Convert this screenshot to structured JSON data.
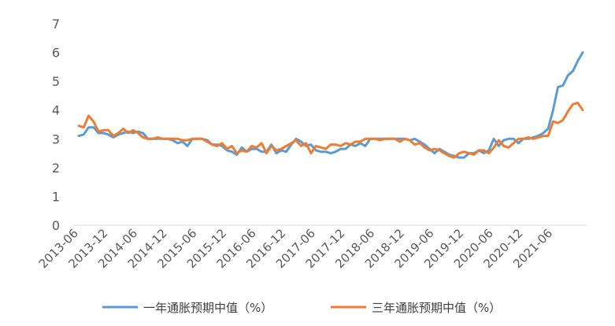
{
  "chart_data": {
    "type": "line",
    "title": "",
    "xlabel": "",
    "ylabel": "",
    "ylim": [
      0,
      7
    ],
    "yticks": [
      "0",
      "1",
      "2",
      "3",
      "4",
      "5",
      "6",
      "7"
    ],
    "xtick_labels": [
      "2013-06",
      "2013-12",
      "2014-06",
      "2014-12",
      "2015-06",
      "2015-12",
      "2016-06",
      "2016-12",
      "2017-06",
      "2017-12",
      "2018-06",
      "2018-12",
      "2019-06",
      "2019-12",
      "2020-06",
      "2020-12",
      "2021-06"
    ],
    "x_start": "2013-06",
    "frequency": "monthly",
    "grid": false,
    "legend_position": "bottom",
    "series": [
      {
        "name": "一年通胀预期中值（%）",
        "color": "#5B9BD5",
        "values": [
          3.1,
          3.15,
          3.4,
          3.4,
          3.2,
          3.2,
          3.15,
          3.05,
          3.15,
          3.2,
          3.25,
          3.2,
          3.25,
          3.2,
          3.0,
          3.0,
          3.0,
          3.0,
          3.0,
          2.95,
          2.85,
          2.9,
          2.75,
          3.0,
          3.0,
          3.0,
          2.95,
          2.8,
          2.8,
          2.75,
          2.6,
          2.55,
          2.45,
          2.7,
          2.55,
          2.65,
          2.65,
          2.55,
          2.55,
          2.8,
          2.5,
          2.6,
          2.55,
          2.8,
          3.0,
          2.9,
          2.75,
          2.8,
          2.6,
          2.55,
          2.55,
          2.5,
          2.55,
          2.65,
          2.65,
          2.8,
          2.75,
          2.85,
          2.75,
          3.0,
          3.0,
          3.0,
          3.0,
          3.0,
          3.0,
          3.0,
          3.0,
          2.95,
          3.0,
          2.9,
          2.8,
          2.65,
          2.5,
          2.65,
          2.55,
          2.45,
          2.4,
          2.35,
          2.35,
          2.5,
          2.5,
          2.6,
          2.5,
          2.6,
          3.0,
          2.75,
          2.95,
          3.0,
          3.0,
          2.85,
          3.0,
          3.0,
          3.05,
          3.1,
          3.2,
          3.35,
          4.0,
          4.8,
          4.85,
          5.2,
          5.35,
          5.7,
          6.0
        ]
      },
      {
        "name": "三年通胀预期中值（%）",
        "color": "#ED7D31",
        "values": [
          3.45,
          3.4,
          3.8,
          3.6,
          3.25,
          3.3,
          3.3,
          3.1,
          3.2,
          3.35,
          3.2,
          3.3,
          3.2,
          3.05,
          3.0,
          3.0,
          3.05,
          3.0,
          3.0,
          3.0,
          3.0,
          2.95,
          2.95,
          3.0,
          3.0,
          3.0,
          2.9,
          2.8,
          2.75,
          2.85,
          2.65,
          2.75,
          2.5,
          2.6,
          2.55,
          2.75,
          2.7,
          2.85,
          2.5,
          2.75,
          2.6,
          2.65,
          2.75,
          2.85,
          2.95,
          2.75,
          2.85,
          2.5,
          2.75,
          2.7,
          2.65,
          2.8,
          2.8,
          2.75,
          2.85,
          2.8,
          2.9,
          2.9,
          3.0,
          3.0,
          3.0,
          2.95,
          3.0,
          3.0,
          3.0,
          2.9,
          3.0,
          2.95,
          2.8,
          2.85,
          2.7,
          2.6,
          2.65,
          2.6,
          2.5,
          2.4,
          2.35,
          2.5,
          2.55,
          2.5,
          2.45,
          2.6,
          2.6,
          2.5,
          2.7,
          2.95,
          2.75,
          2.7,
          2.85,
          3.0,
          3.0,
          3.05,
          3.0,
          3.05,
          3.1,
          3.1,
          3.6,
          3.55,
          3.65,
          3.95,
          4.2,
          4.25,
          4.0
        ]
      }
    ]
  }
}
